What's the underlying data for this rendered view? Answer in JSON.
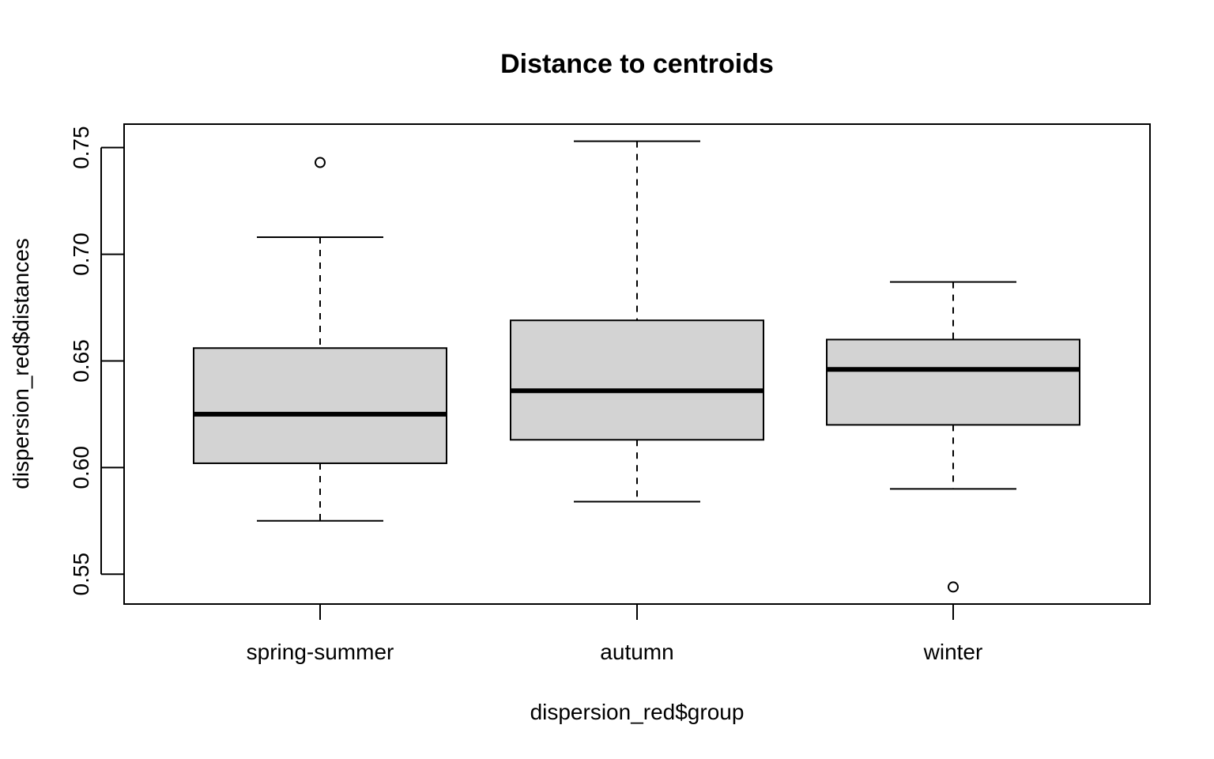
{
  "chart_data": {
    "type": "box",
    "title": "Distance to centroids",
    "xlabel": "dispersion_red$group",
    "ylabel": "dispersion_red$distances",
    "ylim": [
      0.536,
      0.761
    ],
    "yticks": [
      0.55,
      0.6,
      0.65,
      0.7,
      0.75
    ],
    "ytick_labels": [
      "0.55",
      "0.60",
      "0.65",
      "0.70",
      "0.75"
    ],
    "grid": false,
    "categories": [
      "spring-summer",
      "autumn",
      "winter"
    ],
    "boxes": [
      {
        "name": "spring-summer",
        "whisker_low": 0.575,
        "q1": 0.602,
        "median": 0.625,
        "q3": 0.656,
        "whisker_high": 0.708,
        "outliers": [
          0.743
        ]
      },
      {
        "name": "autumn",
        "whisker_low": 0.584,
        "q1": 0.613,
        "median": 0.636,
        "q3": 0.669,
        "whisker_high": 0.753,
        "outliers": []
      },
      {
        "name": "winter",
        "whisker_low": 0.59,
        "q1": 0.62,
        "median": 0.646,
        "q3": 0.66,
        "whisker_high": 0.687,
        "outliers": [
          0.544
        ]
      }
    ],
    "colors": {
      "box_fill": "#d3d3d3",
      "stroke": "#000000"
    }
  }
}
